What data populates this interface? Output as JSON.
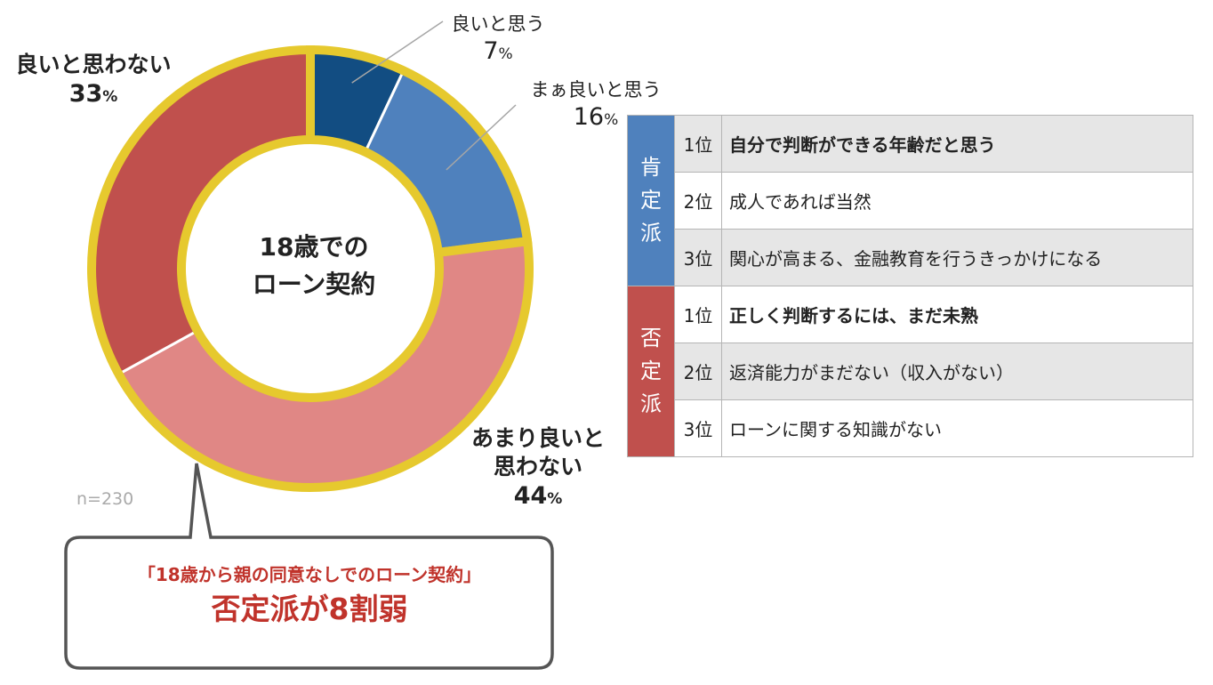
{
  "chart_data": {
    "type": "pie",
    "variant": "donut",
    "center_label": [
      "18歳での",
      "ローン契約"
    ],
    "sample_size": "n=230",
    "slices": [
      {
        "label": "良いと思う",
        "value": 7,
        "value_text": "7",
        "unit": "%",
        "color": "#124d82",
        "emphasis": false
      },
      {
        "label": "まぁ良いと思う",
        "value": 16,
        "value_text": "16",
        "unit": "%",
        "color": "#4f81bd",
        "emphasis": false
      },
      {
        "label": "あまり良いと思わない",
        "label_lines": [
          "あまり良いと",
          "思わない"
        ],
        "value": 44,
        "value_text": "44",
        "unit": "%",
        "color": "#e08785",
        "emphasis": true
      },
      {
        "label": "良いと思わない",
        "value": 33,
        "value_text": "33",
        "unit": "%",
        "color": "#c0504d",
        "emphasis": true
      }
    ],
    "highlight_color": "#e6c92e"
  },
  "callout": {
    "line1": "「18歳から親の同意なしでのローン契約」",
    "line2": "否定派が8割弱"
  },
  "reasons_table": {
    "groups": [
      {
        "name": "肯定派",
        "color": "#4f81bd",
        "rows": [
          {
            "rank": "1位",
            "text": "自分で判断ができる年齢だと思う",
            "bold": true,
            "shaded": true
          },
          {
            "rank": "2位",
            "text": "成人であれば当然",
            "bold": false,
            "shaded": false
          },
          {
            "rank": "3位",
            "text": "関心が高まる、金融教育を行うきっかけになる",
            "bold": false,
            "shaded": true
          }
        ]
      },
      {
        "name": "否定派",
        "color": "#c0504d",
        "rows": [
          {
            "rank": "1位",
            "text": "正しく判断するには、まだ未熟",
            "bold": true,
            "shaded": false
          },
          {
            "rank": "2位",
            "text": "返済能力がまだない（収入がない）",
            "bold": false,
            "shaded": true
          },
          {
            "rank": "3位",
            "text": "ローンに関する知識がない",
            "bold": false,
            "shaded": false
          }
        ]
      }
    ]
  }
}
